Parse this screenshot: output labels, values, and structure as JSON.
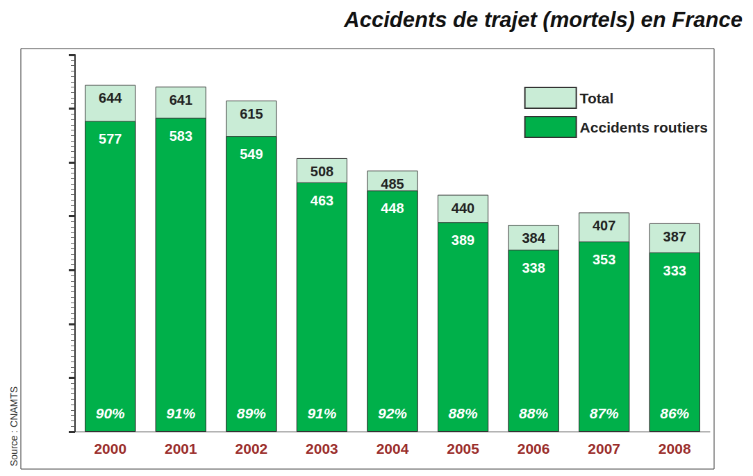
{
  "chart_data": {
    "type": "bar",
    "title": "Accidents de trajet (mortels) en France",
    "categories": [
      "2000",
      "2001",
      "2002",
      "2003",
      "2004",
      "2005",
      "2006",
      "2007",
      "2008"
    ],
    "series": [
      {
        "name": "Total",
        "color": "#c9ecd6",
        "values": [
          644,
          641,
          615,
          508,
          485,
          440,
          384,
          407,
          387
        ]
      },
      {
        "name": "Accidents routiers",
        "color": "#00b04a",
        "values": [
          577,
          583,
          549,
          463,
          448,
          389,
          338,
          353,
          333
        ],
        "share_labels": [
          "90%",
          "91%",
          "89%",
          "91%",
          "92%",
          "88%",
          "88%",
          "87%",
          "86%"
        ]
      }
    ],
    "ylim": [
      0,
      700
    ],
    "yticks": [
      0,
      100,
      200,
      300,
      400,
      500,
      600,
      700
    ],
    "grid": false,
    "legend": "upper right",
    "stacked": false,
    "data_labels": true,
    "tick_labels": "x",
    "annotations": [
      "Source : CNAMTS"
    ]
  }
}
